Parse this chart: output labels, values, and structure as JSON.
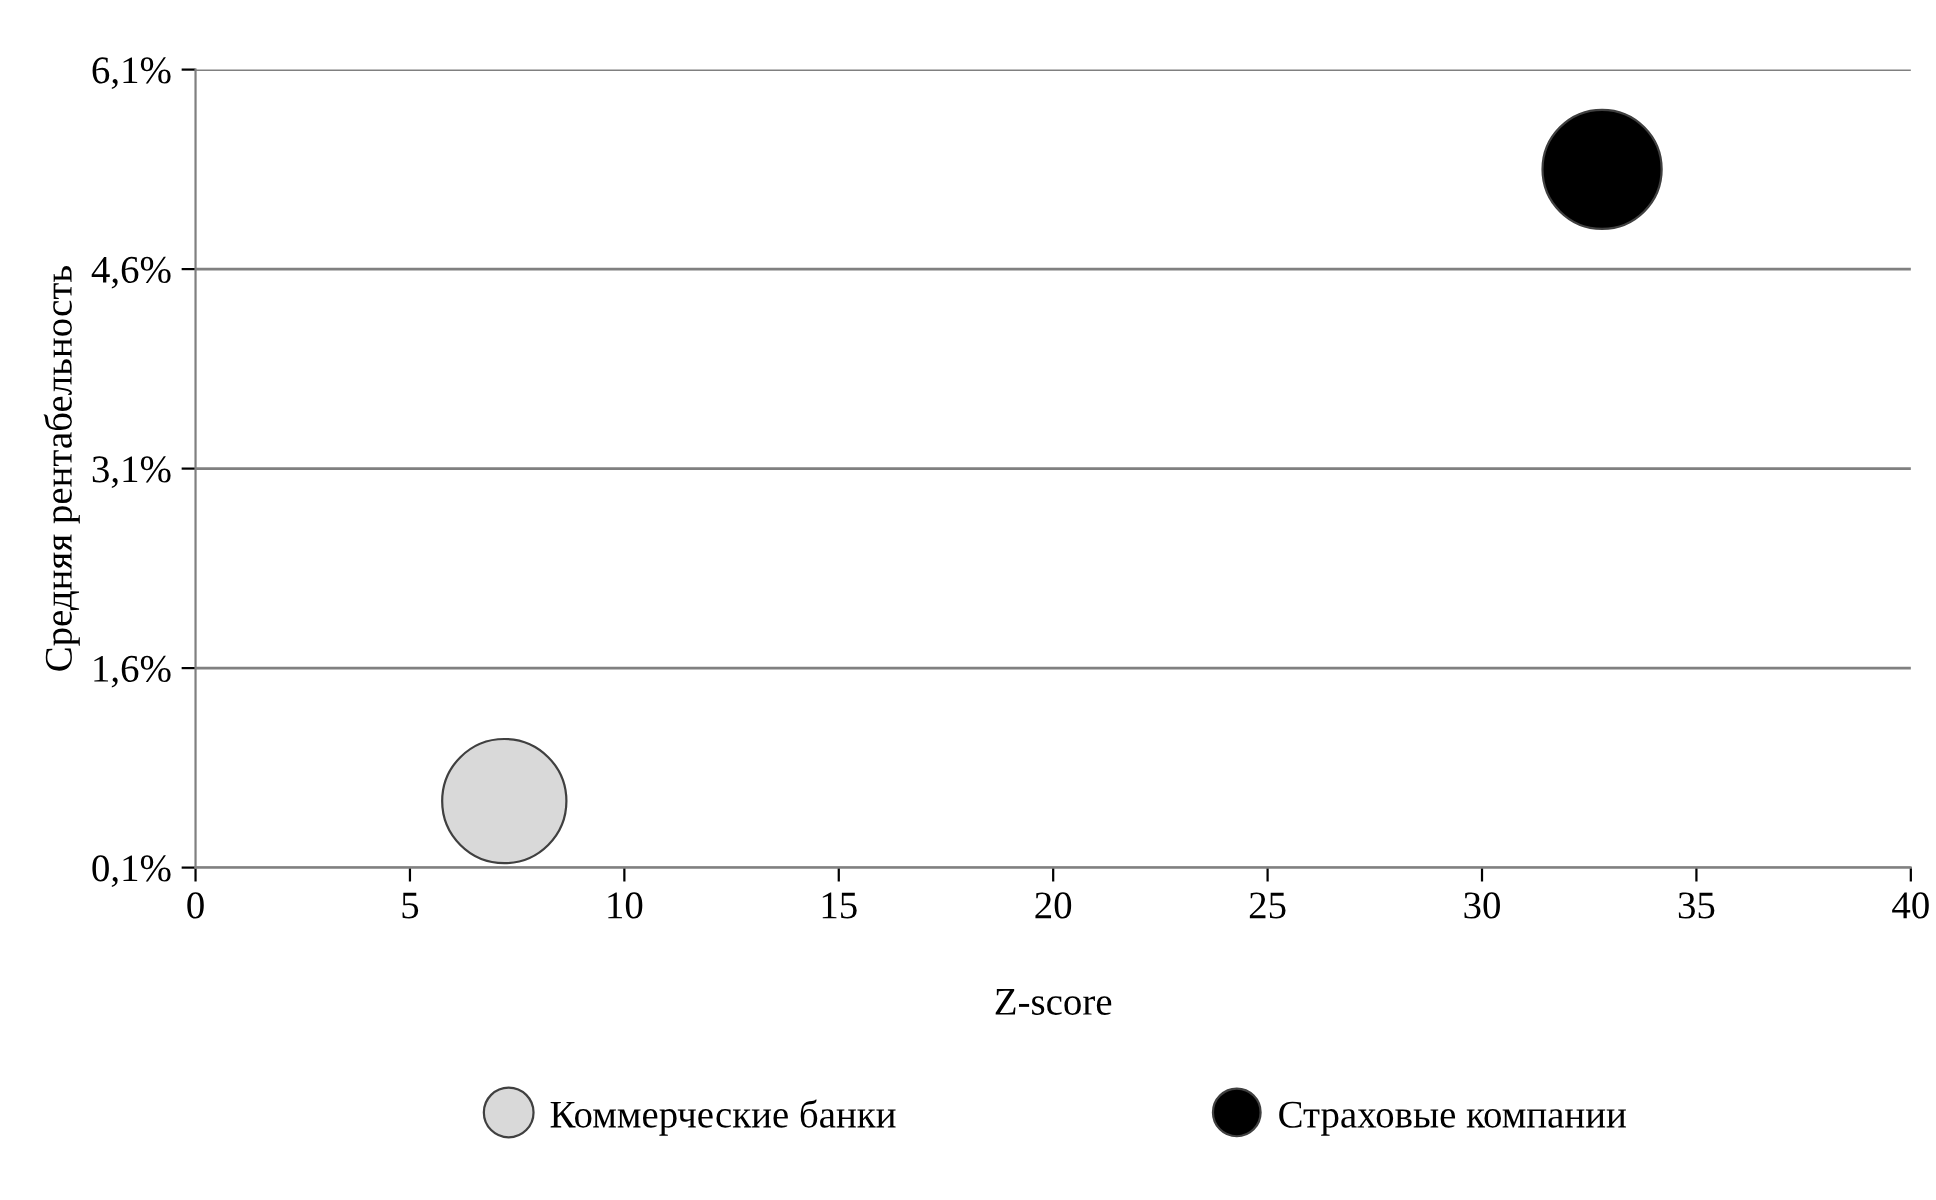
{
  "chart_data": {
    "type": "bubble",
    "xlabel": "Z-score",
    "ylabel": "Средняя рентабельность",
    "series": [
      {
        "name": "Коммерческие банки",
        "color": "#d9d9d9",
        "x": [
          7.2
        ],
        "values": [
          0.6
        ],
        "sizes": [
          1
        ]
      },
      {
        "name": "Страховые компании",
        "color": "#000000",
        "x": [
          32.8
        ],
        "values": [
          5.35
        ],
        "sizes": [
          0.92
        ]
      }
    ],
    "xlim": [
      0,
      40
    ],
    "xticks": [
      0,
      5,
      10,
      15,
      20,
      25,
      30,
      35,
      40
    ],
    "ylim": [
      0.1,
      6.1
    ],
    "yticks": [
      {
        "value": 0.1,
        "label": "0,1%"
      },
      {
        "value": 1.6,
        "label": "1,6%"
      },
      {
        "value": 3.1,
        "label": "3,1%"
      },
      {
        "value": 4.6,
        "label": "4,6%"
      },
      {
        "value": 6.1,
        "label": "6,1%"
      }
    ],
    "grid": "y",
    "legend": "bottom"
  }
}
